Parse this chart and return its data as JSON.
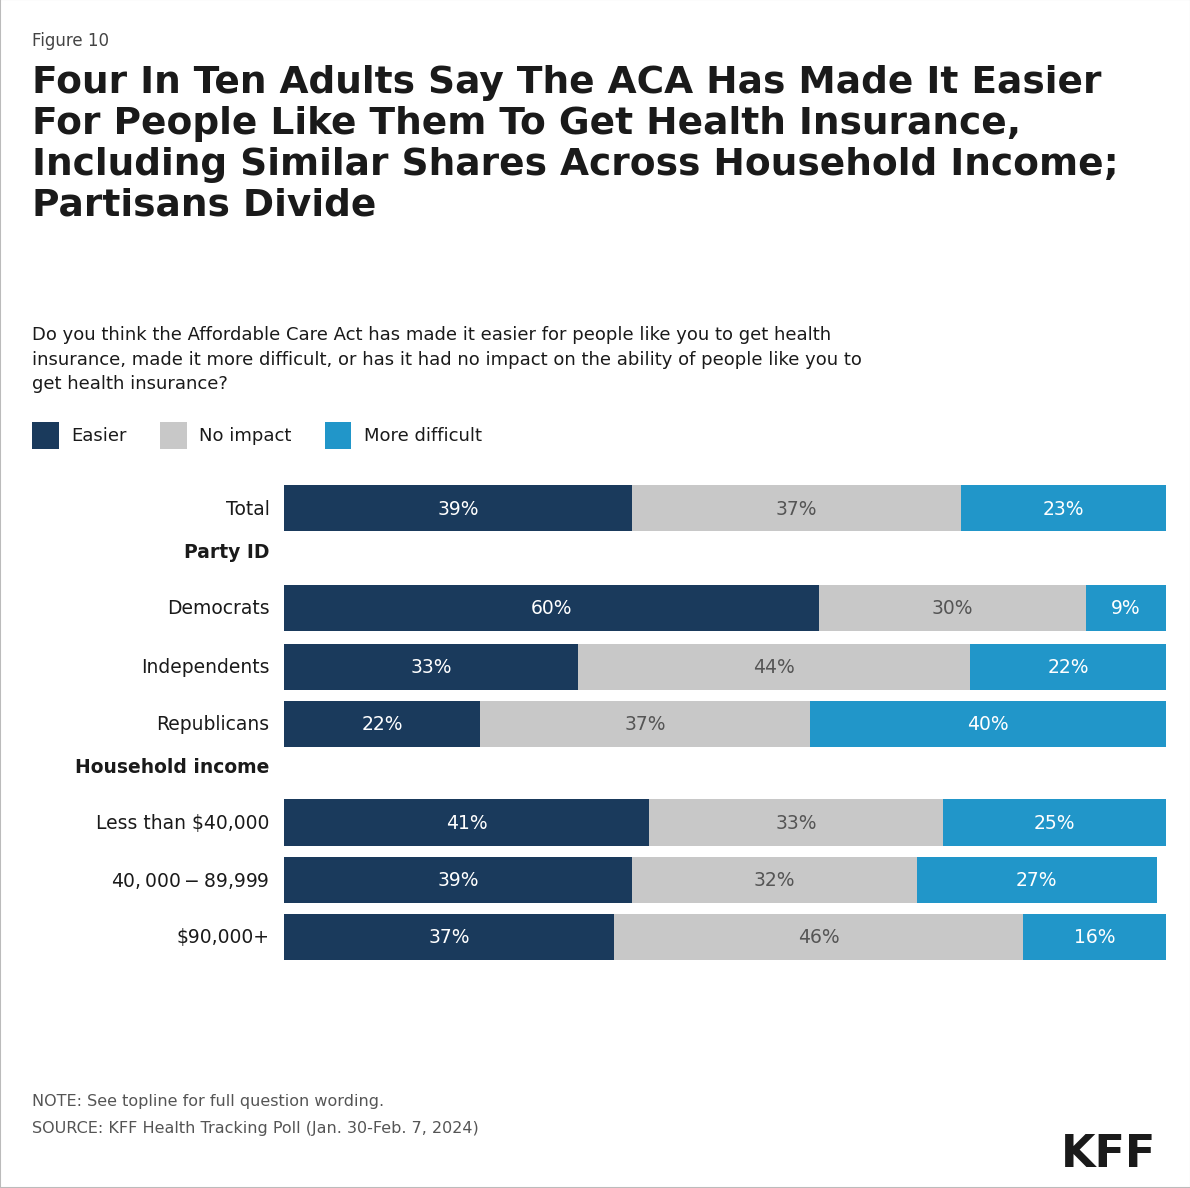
{
  "figure_label": "Figure 10",
  "title_line1": "Four In Ten Adults Say The ACA Has Made It Easier",
  "title_line2": "For People Like Them To Get Health Insurance,",
  "title_line3": "Including Similar Shares Across Household Income;",
  "title_line4": "Partisans Divide",
  "subtitle": "Do you think the Affordable Care Act has made it easier for people like you to get health\ninsurance, made it more difficult, or has it had no impact on the ability of people like you to\nget health insurance?",
  "note_line1": "NOTE: See topline for full question wording.",
  "note_line2": "SOURCE: KFF Health Tracking Poll (Jan. 30-Feb. 7, 2024)",
  "color_easier": "#1a3a5c",
  "color_no_impact": "#c8c8c8",
  "color_difficult": "#2196c9",
  "color_text_dark": "#1a1a1a",
  "color_text_note": "#555555",
  "color_border": "#bbbbbb",
  "categories": [
    "Total",
    "Democrats",
    "Independents",
    "Republicans",
    "Less than $40,000",
    "$40,000-$89,999",
    "$90,000+"
  ],
  "easier": [
    39,
    60,
    33,
    22,
    41,
    39,
    37
  ],
  "no_impact": [
    37,
    30,
    44,
    37,
    33,
    32,
    46
  ],
  "difficult": [
    23,
    9,
    22,
    40,
    25,
    27,
    16
  ],
  "section_before_index_1": "Party ID",
  "section_before_index_4": "Household income",
  "bar_height": 0.62
}
